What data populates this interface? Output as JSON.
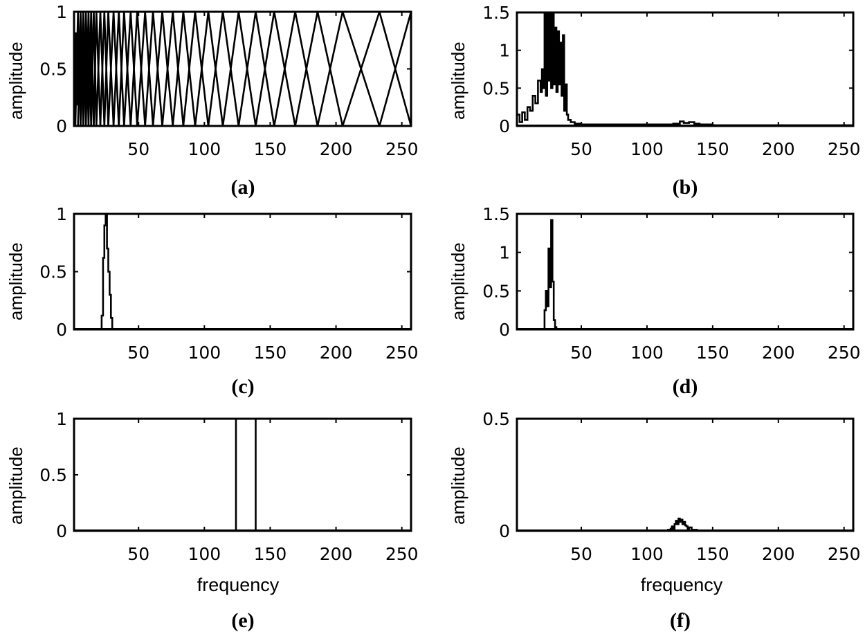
{
  "figure": {
    "panels": [
      {
        "id": "a",
        "caption": "(a)",
        "ylabel": "amplitude",
        "xlabel": ""
      },
      {
        "id": "b",
        "caption": "(b)",
        "ylabel": "amplitude",
        "xlabel": ""
      },
      {
        "id": "c",
        "caption": "(c)",
        "ylabel": "amplitude",
        "xlabel": ""
      },
      {
        "id": "d",
        "caption": "(d)",
        "ylabel": "amplitude",
        "xlabel": ""
      },
      {
        "id": "e",
        "caption": "(e)",
        "ylabel": "amplitude",
        "xlabel": "frequency"
      },
      {
        "id": "f",
        "caption": "(f)",
        "ylabel": "amplitude",
        "xlabel": "frequency"
      }
    ]
  },
  "chart_data": [
    {
      "panel": "(a)",
      "type": "line",
      "title": "",
      "xlabel": "",
      "ylabel": "amplitude",
      "xlim": [
        1,
        257
      ],
      "ylim": [
        0,
        1
      ],
      "xticks": [
        50,
        100,
        150,
        200,
        250
      ],
      "yticks": [
        0,
        0.5,
        1
      ],
      "ytick_labels": [
        "0",
        "0.5",
        "1"
      ],
      "grid": false,
      "description": "Mel-scale triangular filterbank: overlapping triangles, dense at low frequency, widening toward high frequency",
      "filter_centers": [
        2,
        4,
        6,
        8,
        10,
        12,
        14,
        16,
        18,
        21,
        24,
        27,
        31,
        35,
        39,
        44,
        49,
        55,
        61,
        68,
        76,
        84,
        93,
        103,
        114,
        126,
        139,
        153,
        169,
        186,
        205,
        233,
        257
      ],
      "peak_amplitude": 1
    },
    {
      "panel": "(b)",
      "type": "line",
      "title": "",
      "xlabel": "",
      "ylabel": "amplitude",
      "xlim": [
        1,
        257
      ],
      "ylim": [
        0,
        1.5
      ],
      "xticks": [
        50,
        100,
        150,
        200,
        250
      ],
      "yticks": [
        0,
        0.5,
        1,
        1.5
      ],
      "ytick_labels": [
        "0",
        "0.5",
        "1",
        "1.5"
      ],
      "grid": false,
      "description": "Magnitude spectrum concentrated below ~40, clipped peaks near 22-28, near-zero tail with a small bump around 120-135",
      "x": [
        1,
        3,
        5,
        7,
        9,
        11,
        13,
        15,
        17,
        19,
        20,
        21,
        22,
        23,
        24,
        25,
        26,
        27,
        28,
        29,
        30,
        31,
        32,
        33,
        34,
        35,
        36,
        37,
        38,
        39,
        40,
        42,
        45,
        50,
        60,
        70,
        80,
        90,
        100,
        110,
        120,
        125,
        128,
        132,
        136,
        140,
        150,
        200,
        257
      ],
      "values": [
        0.15,
        0.05,
        0.18,
        0.08,
        0.25,
        0.2,
        0.4,
        0.3,
        0.6,
        0.45,
        0.75,
        0.5,
        1.5,
        0.4,
        1.5,
        0.6,
        1.5,
        0.5,
        1.5,
        0.55,
        1.3,
        0.45,
        1.25,
        0.55,
        1.1,
        0.4,
        1.2,
        0.2,
        0.55,
        0.15,
        0.08,
        0.05,
        0.03,
        0.02,
        0.02,
        0.02,
        0.02,
        0.02,
        0.02,
        0.02,
        0.03,
        0.06,
        0.04,
        0.05,
        0.03,
        0.02,
        0.01,
        0.01,
        0.01
      ]
    },
    {
      "panel": "(c)",
      "type": "line",
      "title": "",
      "xlabel": "",
      "ylabel": "amplitude",
      "xlim": [
        1,
        257
      ],
      "ylim": [
        0,
        1
      ],
      "xticks": [
        50,
        100,
        150,
        200,
        250
      ],
      "yticks": [
        0,
        0.5,
        1
      ],
      "ytick_labels": [
        "0",
        "0.5",
        "1"
      ],
      "grid": false,
      "description": "Single triangular filter centered near frequency 25",
      "x": [
        21,
        22,
        23,
        24,
        25,
        26,
        27,
        28,
        29,
        30
      ],
      "values": [
        0,
        0.12,
        0.62,
        0.9,
        1.0,
        0.7,
        0.5,
        0.3,
        0.1,
        0
      ]
    },
    {
      "panel": "(d)",
      "type": "line",
      "title": "",
      "xlabel": "",
      "ylabel": "amplitude",
      "xlim": [
        1,
        257
      ],
      "ylim": [
        0,
        1.5
      ],
      "xticks": [
        50,
        100,
        150,
        200,
        250
      ],
      "yticks": [
        0,
        0.5,
        1,
        1.5
      ],
      "ytick_labels": [
        "0",
        "0.5",
        "1",
        "1.5"
      ],
      "grid": false,
      "description": "Spectrum (b) multiplied by filter (c): narrow peak near frequency 27",
      "x": [
        21,
        22,
        23,
        24,
        25,
        26,
        27,
        28,
        29,
        30,
        31
      ],
      "values": [
        0,
        0.25,
        0.5,
        0.3,
        1.05,
        0.55,
        1.42,
        0.62,
        0.12,
        0.03,
        0
      ]
    },
    {
      "panel": "(e)",
      "type": "line",
      "title": "",
      "xlabel": "frequency",
      "ylabel": "amplitude",
      "xlim": [
        1,
        257
      ],
      "ylim": [
        0,
        1
      ],
      "xticks": [
        50,
        100,
        150,
        200,
        250
      ],
      "yticks": [
        0,
        0.5,
        1
      ],
      "ytick_labels": [
        "0",
        "0.5",
        "1"
      ],
      "grid": false,
      "description": "Single triangular filter centered near frequency 124",
      "x": [
        111,
        124,
        139
      ],
      "values": [
        0,
        1.0,
        0
      ]
    },
    {
      "panel": "(f)",
      "type": "line",
      "title": "",
      "xlabel": "frequency",
      "ylabel": "amplitude",
      "xlim": [
        1,
        257
      ],
      "ylim": [
        0,
        0.5
      ],
      "xticks": [
        50,
        100,
        150,
        200,
        250
      ],
      "yticks": [
        0,
        0.5
      ],
      "ytick_labels": [
        "0",
        "0.5"
      ],
      "grid": false,
      "description": "Spectrum (b) multiplied by filter (e): small bump around 115-138",
      "x": [
        1,
        112,
        116,
        118,
        119,
        120,
        121,
        122,
        123,
        124,
        125,
        126,
        127,
        128,
        129,
        130,
        131,
        132,
        134,
        136,
        138,
        257
      ],
      "values": [
        0,
        0,
        0.005,
        0.01,
        0.02,
        0.01,
        0.03,
        0.045,
        0.03,
        0.055,
        0.04,
        0.05,
        0.03,
        0.04,
        0.025,
        0.02,
        0.01,
        0.015,
        0.005,
        0.005,
        0,
        0
      ]
    }
  ]
}
